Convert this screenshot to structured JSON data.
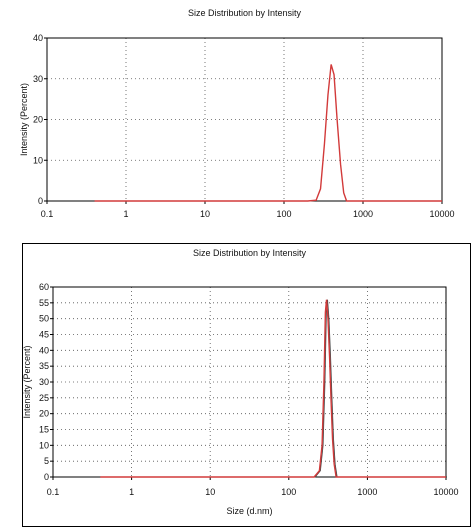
{
  "chart_data": [
    {
      "type": "line",
      "title": "Size Distribution by Intensity",
      "xlabel": "",
      "ylabel": "Intensity (Percent)",
      "xscale": "log",
      "xlim": [
        0.1,
        10000
      ],
      "ylim": [
        0,
        40
      ],
      "x_ticks": [
        "0.1",
        "1",
        "10",
        "100",
        "1000",
        "10000"
      ],
      "y_ticks": [
        "0",
        "10",
        "20",
        "30",
        "40"
      ],
      "grid": true,
      "series": [
        {
          "color": "#d23a3a",
          "x": [
            0.4,
            200,
            255,
            290,
            325,
            360,
            395,
            430,
            470,
            520,
            570,
            620,
            1000,
            10000
          ],
          "y": [
            0,
            0,
            0.2,
            3,
            14,
            26,
            33.5,
            31,
            20,
            9,
            2,
            0,
            0,
            0
          ]
        }
      ]
    },
    {
      "type": "line",
      "title": "Size Distribution by Intensity",
      "xlabel": "Size (d.nm)",
      "ylabel": "Intensity (Percent)",
      "xscale": "log",
      "xlim": [
        0.1,
        10000
      ],
      "ylim": [
        0,
        60
      ],
      "x_ticks": [
        "0.1",
        "1",
        "10",
        "100",
        "1000",
        "10000"
      ],
      "y_ticks": [
        "0",
        "5",
        "10",
        "15",
        "20",
        "25",
        "30",
        "35",
        "40",
        "45",
        "50",
        "55",
        "60"
      ],
      "grid": true,
      "series": [
        {
          "color": "#d23a3a",
          "x": [
            0.4,
            210,
            245,
            265,
            280,
            292,
            302,
            315,
            330,
            345,
            360,
            378,
            400,
            10000
          ],
          "y": [
            0,
            0,
            2,
            10,
            30,
            52,
            56,
            50,
            38,
            24,
            12,
            4,
            0,
            0
          ]
        }
      ]
    }
  ]
}
